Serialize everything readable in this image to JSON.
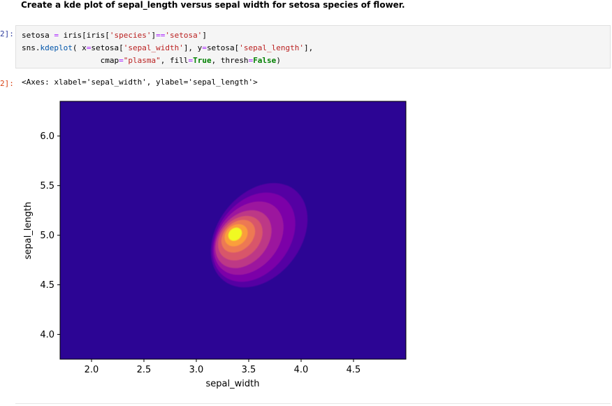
{
  "markdown": {
    "heading": "Create a kde plot of sepal_length versus sepal width for setosa species of flower."
  },
  "cell": {
    "in_prompt": "2]:",
    "out_prompt": "2]:",
    "code": {
      "line1": {
        "a": "setosa ",
        "op1": "=",
        "b": " iris[iris[",
        "s1": "'species'",
        "c": "]",
        "op2": "==",
        "s2": "'setosa'",
        "d": "]"
      },
      "line2": {
        "a": "sns.",
        "fn": "kdeplot",
        "b": "( x",
        "op1": "=",
        "c": "setosa[",
        "s1": "'sepal_width'",
        "d": "], y",
        "op2": "=",
        "e": "setosa[",
        "s2": "'sepal_length'",
        "f": "],"
      },
      "line3": {
        "indent": "                 ",
        "a": "cmap",
        "op1": "=",
        "s1": "\"plasma\"",
        "b": ", fill",
        "op2": "=",
        "kw1": "True",
        "c": ", thresh",
        "op3": "=",
        "kw2": "False",
        "d": ")"
      }
    },
    "output_text": "<Axes: xlabel='sepal_width', ylabel='sepal_length'>"
  },
  "chart_data": {
    "type": "kde",
    "xlabel": "sepal_width",
    "ylabel": "sepal_length",
    "xlim": [
      1.7,
      5.0
    ],
    "ylim": [
      3.75,
      6.35
    ],
    "xticks": [
      "2.0",
      "2.5",
      "3.0",
      "3.5",
      "4.0",
      "4.5"
    ],
    "yticks": [
      "4.0",
      "4.5",
      "5.0",
      "5.5",
      "6.0"
    ],
    "xtick_values": [
      2.0,
      2.5,
      3.0,
      3.5,
      4.0,
      4.5
    ],
    "ytick_values": [
      4.0,
      4.5,
      5.0,
      5.5,
      6.0
    ],
    "cmap": "plasma",
    "fill": true,
    "thresh": false,
    "background_color": "#2c0594",
    "levels": [
      {
        "level": 1,
        "color": "#5402a3",
        "cx": 3.6,
        "cy": 5.0,
        "rx": 0.55,
        "ry": 0.42,
        "rotation": 52
      },
      {
        "level": 2,
        "color": "#7b02a8",
        "cx": 3.55,
        "cy": 4.98,
        "rx": 0.47,
        "ry": 0.36,
        "rotation": 52
      },
      {
        "level": 3,
        "color": "#9c179e",
        "cx": 3.5,
        "cy": 4.97,
        "rx": 0.39,
        "ry": 0.3,
        "rotation": 50
      },
      {
        "level": 4,
        "color": "#bd3786",
        "cx": 3.45,
        "cy": 4.96,
        "rx": 0.31,
        "ry": 0.24,
        "rotation": 48
      },
      {
        "level": 5,
        "color": "#d8576b",
        "cx": 3.42,
        "cy": 4.97,
        "rx": 0.24,
        "ry": 0.19,
        "rotation": 45
      },
      {
        "level": 6,
        "color": "#ed7953",
        "cx": 3.4,
        "cy": 4.99,
        "rx": 0.18,
        "ry": 0.14,
        "rotation": 42
      },
      {
        "level": 7,
        "color": "#fb9f3a",
        "cx": 3.38,
        "cy": 5.0,
        "rx": 0.12,
        "ry": 0.1,
        "rotation": 40
      },
      {
        "level": 8,
        "color": "#f0f921",
        "cx": 3.37,
        "cy": 5.01,
        "rx": 0.07,
        "ry": 0.06,
        "rotation": 40
      }
    ]
  }
}
